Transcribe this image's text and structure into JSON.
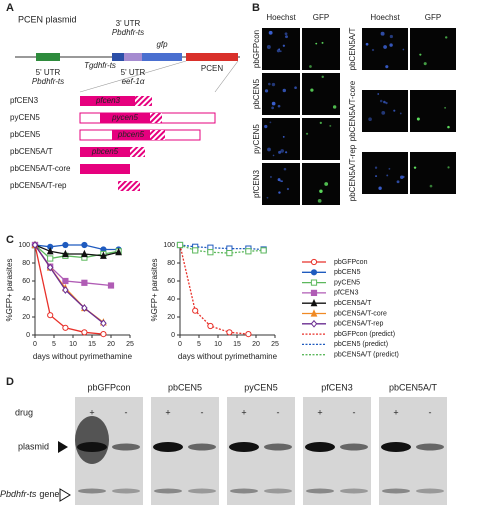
{
  "panel_labels": [
    "A",
    "B",
    "C",
    "D"
  ],
  "panel_a": {
    "title": "PCEN plasmid",
    "elements": {
      "utr5_left": [
        "5' UTR",
        "Pbdhfr-ts"
      ],
      "tgdhfr": "Tgdhfr-ts",
      "utr3": [
        "3' UTR",
        "Pbdhfr-ts"
      ],
      "utr5_eef": [
        "5' UTR",
        "eef-1α"
      ],
      "gfp": "gfp",
      "pcen": "PCEN"
    },
    "constructs": [
      {
        "name": "pfCEN3",
        "insert": "pfcen3"
      },
      {
        "name": "pyCEN5",
        "insert": "pycen5"
      },
      {
        "name": "pbCEN5",
        "insert": "pbcen5"
      },
      {
        "name": "pbCEN5A/T",
        "insert": "pbcen5"
      },
      {
        "name": "pbCEN5A/T-core"
      },
      {
        "name": "pbCEN5A/T-rep"
      }
    ]
  },
  "panel_b": {
    "columns": [
      "Hoechst",
      "GFP"
    ],
    "left_rows": [
      "pbGFPcon",
      "pbCEN5",
      "pyCEN5",
      "pfCEN3"
    ],
    "right_rows": [
      "pbCEN5A/T",
      "pbCEN5A/T-core",
      "pbCEN5A/T-rep"
    ]
  },
  "chart_data": [
    {
      "type": "line",
      "xlabel": "days without pyrimethamine",
      "ylabel": "%GFP+ parasites",
      "xlim": [
        0,
        25
      ],
      "ylim": [
        0,
        100
      ],
      "xticks": [
        0,
        5,
        10,
        15,
        20,
        25
      ],
      "yticks": [
        0,
        20,
        40,
        60,
        80,
        100
      ],
      "series": [
        {
          "name": "pbGFPcon",
          "color": "#e8312a",
          "marker": "circle",
          "filled": false,
          "x": [
            0,
            4,
            8,
            13,
            18
          ],
          "values": [
            100,
            22,
            8,
            3,
            1
          ]
        },
        {
          "name": "pbCEN5",
          "color": "#1f5bbf",
          "marker": "circle",
          "filled": true,
          "x": [
            0,
            4,
            8,
            13,
            18,
            22
          ],
          "values": [
            100,
            98,
            100,
            100,
            95,
            95
          ]
        },
        {
          "name": "pyCEN5",
          "color": "#5cb85c",
          "marker": "square",
          "filled": false,
          "x": [
            0,
            4,
            8,
            13,
            18,
            22
          ],
          "values": [
            100,
            85,
            88,
            86,
            90,
            93
          ]
        },
        {
          "name": "pfCEN3",
          "color": "#b05cb5",
          "marker": "square",
          "filled": true,
          "x": [
            0,
            4,
            8,
            13,
            20
          ],
          "values": [
            100,
            76,
            60,
            58,
            55
          ]
        },
        {
          "name": "pbCEN5A/T",
          "color": "#111111",
          "marker": "triangle",
          "filled": true,
          "x": [
            0,
            4,
            8,
            13,
            18,
            22
          ],
          "values": [
            100,
            93,
            90,
            90,
            88,
            92
          ]
        },
        {
          "name": "pbCEN5A/T-core",
          "color": "#f08a24",
          "marker": "triangle",
          "filled": true,
          "x": [
            0,
            4,
            8,
            13,
            18
          ],
          "values": [
            100,
            75,
            52,
            30,
            14
          ]
        },
        {
          "name": "pbCEN5A/T-rep",
          "color": "#6a2c91",
          "marker": "diamond",
          "filled": false,
          "x": [
            0,
            4,
            8,
            13,
            18
          ],
          "values": [
            100,
            75,
            50,
            30,
            13
          ]
        }
      ]
    },
    {
      "type": "line",
      "xlabel": "days without pyrimethamine",
      "ylabel": "%GFP+ parasites",
      "xlim": [
        0,
        25
      ],
      "ylim": [
        0,
        100
      ],
      "xticks": [
        0,
        5,
        10,
        15,
        20,
        25
      ],
      "yticks": [
        0,
        20,
        40,
        60,
        80,
        100
      ],
      "series": [
        {
          "name": "pbGFPcon (predict)",
          "color": "#e8312a",
          "marker": "circle",
          "filled": false,
          "line_style": "dotted",
          "x": [
            0,
            4,
            8,
            13,
            18
          ],
          "values": [
            100,
            27,
            10,
            3,
            1
          ]
        },
        {
          "name": "pbCEN5 (predict)",
          "color": "#1f5bbf",
          "marker": "square",
          "filled": false,
          "line_style": "dotted",
          "x": [
            0,
            4,
            8,
            13,
            18,
            22
          ],
          "values": [
            100,
            98,
            97,
            96,
            96,
            95
          ]
        },
        {
          "name": "pbCEN5A/T (predict)",
          "color": "#5cb85c",
          "marker": "square",
          "filled": false,
          "line_style": "dotted",
          "x": [
            0,
            4,
            8,
            13,
            18,
            22
          ],
          "values": [
            100,
            94,
            92,
            91,
            93,
            94
          ]
        }
      ]
    }
  ],
  "panel_d": {
    "samples": [
      "pbGFPcon",
      "pbCEN5",
      "pyCEN5",
      "pfCEN3",
      "pbCEN5A/T"
    ],
    "row_label": "drug",
    "lanes": [
      "+",
      "-"
    ],
    "plasmid": "plasmid",
    "gene_italic": "Pbdhfr-ts",
    "gene": "gene"
  }
}
